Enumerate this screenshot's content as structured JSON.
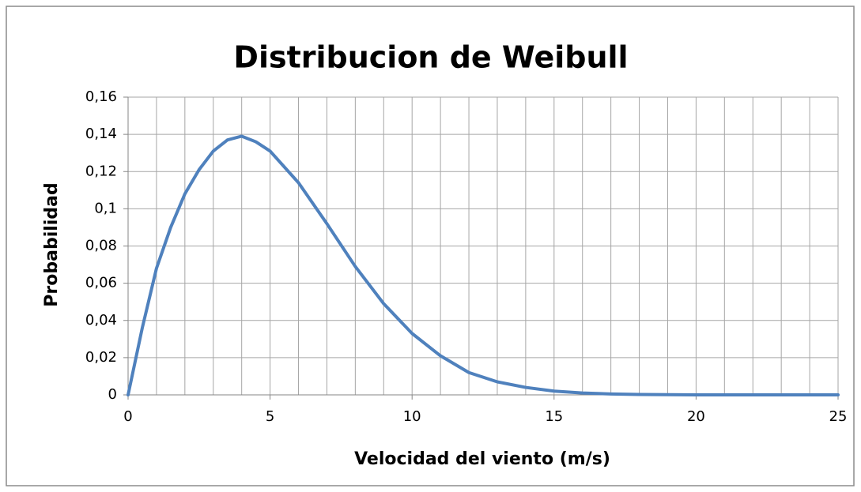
{
  "chart_data": {
    "type": "line",
    "title": "Distribucion de Weibull",
    "xlabel": "Velocidad del viento (m/s)",
    "ylabel": "Probabilidad",
    "x": [
      0,
      0.5,
      1,
      1.5,
      2,
      2.5,
      3,
      3.5,
      4,
      4.5,
      5,
      6,
      7,
      8,
      9,
      10,
      11,
      12,
      13,
      14,
      15,
      16,
      17,
      18,
      19,
      20,
      21,
      22,
      23,
      24,
      25
    ],
    "series": [
      {
        "name": "Probabilidad",
        "color": "#4f81bd",
        "values": [
          0,
          0.036,
          0.068,
          0.09,
          0.108,
          0.121,
          0.131,
          0.137,
          0.139,
          0.136,
          0.131,
          0.114,
          0.092,
          0.069,
          0.049,
          0.033,
          0.021,
          0.012,
          0.007,
          0.004,
          0.002,
          0.001,
          0.0005,
          0.0002,
          0.0001,
          0,
          0,
          0,
          0,
          0,
          0
        ]
      }
    ],
    "xlim": [
      0,
      25
    ],
    "xticks": [
      0,
      5,
      10,
      15,
      20,
      25
    ],
    "x_minor_gridlines": [
      0,
      1,
      2,
      3,
      4,
      5,
      6,
      7,
      8,
      9,
      10,
      11,
      12,
      13,
      14,
      15,
      16,
      17,
      18,
      19,
      20,
      21,
      22,
      23,
      24,
      25
    ],
    "ylim": [
      0,
      0.16
    ],
    "yticks": [
      0,
      {
        "value": 0.02,
        "label": "0,02"
      },
      {
        "value": 0.04,
        "label": "0,04"
      },
      {
        "value": 0.06,
        "label": "0,06"
      },
      {
        "value": 0.08,
        "label": "0,08"
      },
      {
        "value": 0.1,
        "label": "0,1"
      },
      {
        "value": 0.12,
        "label": "0,12"
      },
      {
        "value": 0.14,
        "label": "0,14"
      },
      {
        "value": 0.16,
        "label": "0,16"
      }
    ],
    "grid": true,
    "legend": false
  }
}
